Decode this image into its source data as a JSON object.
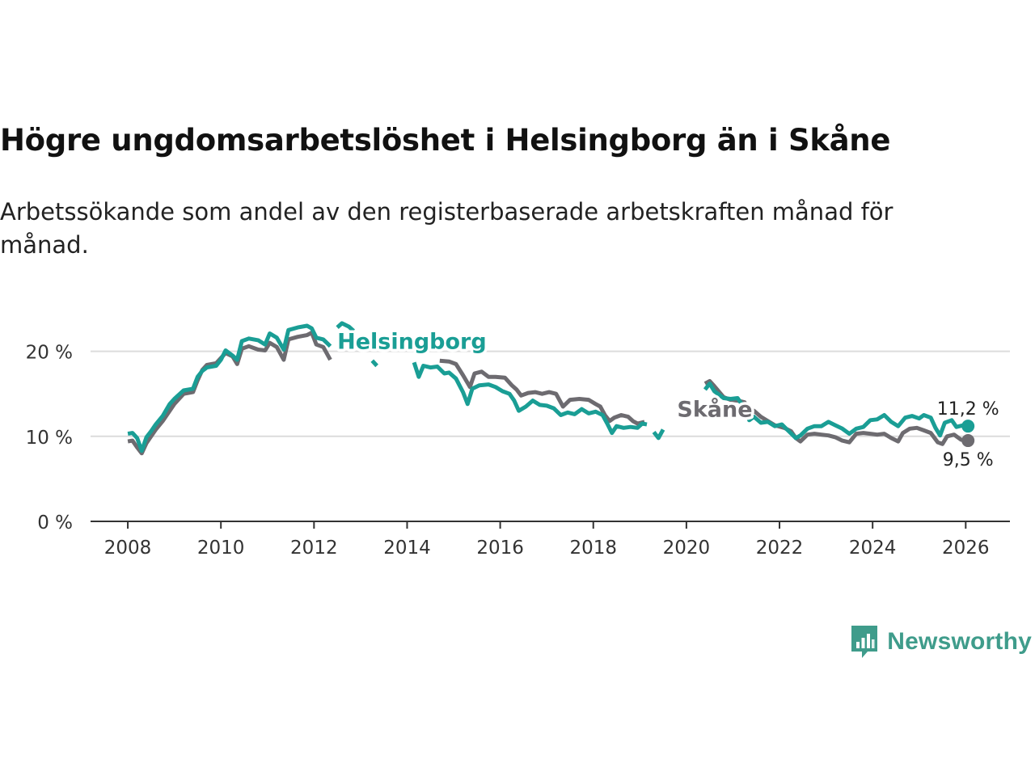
{
  "title": "Högre ungdomsarbetslöshet i Helsingborg än i Skåne",
  "subtitle": "Arbetssökande som andel av den registerbaserade arbetskraften månad för månad.",
  "brand": {
    "name": "Newsworthy",
    "icon": "newsworthy-logo-icon",
    "color": "#3f9c8b"
  },
  "chart_data": {
    "type": "line",
    "title": "Högre ungdomsarbetslöshet i Helsingborg än i Skåne",
    "xlabel": "",
    "ylabel": "",
    "xlim": [
      2007.2,
      2026.95
    ],
    "ylim": [
      0,
      25
    ],
    "x_ticks": [
      2008,
      2010,
      2012,
      2014,
      2016,
      2018,
      2020,
      2022,
      2024,
      2026
    ],
    "x_tick_labels": [
      "2008",
      "2010",
      "2012",
      "2014",
      "2016",
      "2018",
      "2020",
      "2022",
      "2024",
      "2026"
    ],
    "y_ticks": [
      0,
      10,
      20
    ],
    "y_tick_labels": [
      "0 %",
      "10 %",
      "20 %"
    ],
    "grid": true,
    "series": [
      {
        "name": "Skåne",
        "label": "Skåne",
        "color": "#6d6b70",
        "end_label": "9,5 %",
        "label_at": [
          2019.8,
          12.3
        ],
        "points": [
          [
            2008.0,
            9.4
          ],
          [
            2008.1,
            9.5
          ],
          [
            2008.2,
            8.7
          ],
          [
            2008.3,
            8.0
          ],
          [
            2008.4,
            9.2
          ],
          [
            2008.5,
            10.0
          ],
          [
            2008.6,
            10.8
          ],
          [
            2008.75,
            11.8
          ],
          [
            2008.9,
            13.0
          ],
          [
            2009.0,
            13.8
          ],
          [
            2009.2,
            15.0
          ],
          [
            2009.4,
            15.2
          ],
          [
            2009.5,
            16.6
          ],
          [
            2009.6,
            17.8
          ],
          [
            2009.7,
            18.4
          ],
          [
            2009.9,
            18.6
          ],
          [
            2010.0,
            19.2
          ],
          [
            2010.1,
            19.8
          ],
          [
            2010.25,
            19.4
          ],
          [
            2010.35,
            18.5
          ],
          [
            2010.45,
            20.3
          ],
          [
            2010.6,
            20.6
          ],
          [
            2010.8,
            20.2
          ],
          [
            2010.95,
            20.1
          ],
          [
            2011.05,
            21.0
          ],
          [
            2011.2,
            20.5
          ],
          [
            2011.35,
            19.0
          ],
          [
            2011.45,
            21.4
          ],
          [
            2011.65,
            21.7
          ],
          [
            2011.85,
            21.9
          ],
          [
            2011.95,
            22.2
          ],
          [
            2012.05,
            20.8
          ],
          [
            2012.2,
            20.5
          ],
          [
            2012.35,
            19.0
          ],
          null,
          [
            2014.7,
            18.9
          ],
          [
            2014.9,
            18.8
          ],
          [
            2015.05,
            18.5
          ],
          [
            2015.2,
            17.2
          ],
          [
            2015.35,
            15.8
          ],
          [
            2015.45,
            17.4
          ],
          [
            2015.6,
            17.6
          ],
          [
            2015.75,
            17.0
          ],
          [
            2015.9,
            17.0
          ],
          [
            2016.1,
            16.9
          ],
          [
            2016.25,
            16.0
          ],
          [
            2016.35,
            15.5
          ],
          [
            2016.45,
            14.8
          ],
          [
            2016.6,
            15.1
          ],
          [
            2016.75,
            15.2
          ],
          [
            2016.9,
            15.0
          ],
          [
            2017.05,
            15.2
          ],
          [
            2017.2,
            15.0
          ],
          [
            2017.35,
            13.5
          ],
          [
            2017.5,
            14.3
          ],
          [
            2017.7,
            14.4
          ],
          [
            2017.9,
            14.3
          ],
          [
            2018.05,
            13.8
          ],
          [
            2018.15,
            13.5
          ],
          [
            2018.25,
            12.5
          ],
          [
            2018.35,
            11.8
          ],
          [
            2018.45,
            12.2
          ],
          [
            2018.6,
            12.5
          ],
          [
            2018.75,
            12.3
          ],
          [
            2018.85,
            11.8
          ],
          [
            2018.95,
            11.5
          ],
          [
            2019.1,
            11.7
          ],
          null,
          [
            2020.4,
            16.2
          ],
          [
            2020.5,
            16.5
          ],
          [
            2020.6,
            15.9
          ],
          [
            2020.8,
            14.6
          ],
          [
            2020.95,
            14.3
          ],
          [
            2021.1,
            14.2
          ],
          [
            2021.25,
            14.0
          ],
          [
            2021.35,
            12.6
          ],
          [
            2021.45,
            13.0
          ],
          [
            2021.6,
            12.3
          ],
          [
            2021.75,
            11.8
          ],
          [
            2021.9,
            11.3
          ],
          [
            2022.1,
            11.0
          ],
          [
            2022.25,
            10.6
          ],
          [
            2022.35,
            9.8
          ],
          [
            2022.45,
            9.4
          ],
          [
            2022.6,
            10.2
          ],
          [
            2022.75,
            10.3
          ],
          [
            2022.9,
            10.2
          ],
          [
            2023.05,
            10.1
          ],
          [
            2023.2,
            9.9
          ],
          [
            2023.35,
            9.5
          ],
          [
            2023.5,
            9.3
          ],
          [
            2023.65,
            10.3
          ],
          [
            2023.8,
            10.4
          ],
          [
            2023.95,
            10.3
          ],
          [
            2024.1,
            10.2
          ],
          [
            2024.25,
            10.3
          ],
          [
            2024.4,
            9.8
          ],
          [
            2024.55,
            9.4
          ],
          [
            2024.65,
            10.4
          ],
          [
            2024.8,
            10.9
          ],
          [
            2024.95,
            11.0
          ],
          [
            2025.1,
            10.7
          ],
          [
            2025.25,
            10.4
          ],
          [
            2025.4,
            9.3
          ],
          [
            2025.5,
            9.1
          ],
          [
            2025.6,
            10.0
          ],
          [
            2025.75,
            10.2
          ],
          [
            2025.9,
            9.6
          ],
          [
            2026.05,
            9.5
          ]
        ]
      },
      {
        "name": "Helsingborg",
        "label": "Helsingborg",
        "color": "#1a9e95",
        "end_label": "11,2 %",
        "label_at": [
          2012.5,
          20.3
        ],
        "points": [
          [
            2008.0,
            10.3
          ],
          [
            2008.1,
            10.4
          ],
          [
            2008.2,
            9.8
          ],
          [
            2008.3,
            8.3
          ],
          [
            2008.4,
            9.9
          ],
          [
            2008.5,
            10.6
          ],
          [
            2008.6,
            11.4
          ],
          [
            2008.75,
            12.4
          ],
          [
            2008.9,
            13.8
          ],
          [
            2009.0,
            14.4
          ],
          [
            2009.2,
            15.4
          ],
          [
            2009.4,
            15.6
          ],
          [
            2009.5,
            17.0
          ],
          [
            2009.6,
            17.7
          ],
          [
            2009.7,
            18.1
          ],
          [
            2009.9,
            18.3
          ],
          [
            2010.0,
            19.0
          ],
          [
            2010.1,
            20.1
          ],
          [
            2010.25,
            19.5
          ],
          [
            2010.35,
            19.0
          ],
          [
            2010.45,
            21.2
          ],
          [
            2010.6,
            21.5
          ],
          [
            2010.8,
            21.3
          ],
          [
            2010.95,
            20.8
          ],
          [
            2011.05,
            22.1
          ],
          [
            2011.2,
            21.6
          ],
          [
            2011.35,
            20.2
          ],
          [
            2011.45,
            22.5
          ],
          [
            2011.65,
            22.8
          ],
          [
            2011.85,
            23.0
          ],
          [
            2011.95,
            22.7
          ],
          [
            2012.05,
            21.6
          ],
          [
            2012.2,
            21.4
          ],
          [
            2012.35,
            20.6
          ],
          null,
          [
            2012.5,
            22.8
          ],
          [
            2012.6,
            23.3
          ],
          [
            2012.75,
            22.9
          ],
          [
            2012.85,
            22.4
          ],
          null,
          [
            2013.25,
            18.9
          ],
          [
            2013.35,
            18.3
          ],
          null,
          [
            2014.15,
            18.7
          ],
          [
            2014.25,
            17.0
          ],
          [
            2014.35,
            18.3
          ],
          [
            2014.5,
            18.1
          ],
          [
            2014.65,
            18.2
          ],
          [
            2014.8,
            17.4
          ],
          [
            2014.9,
            17.5
          ],
          [
            2015.05,
            16.8
          ],
          [
            2015.2,
            15.2
          ],
          [
            2015.3,
            13.8
          ],
          [
            2015.4,
            15.6
          ],
          [
            2015.55,
            16.0
          ],
          [
            2015.75,
            16.1
          ],
          [
            2015.9,
            15.8
          ],
          [
            2016.05,
            15.3
          ],
          [
            2016.2,
            15.0
          ],
          [
            2016.3,
            14.2
          ],
          [
            2016.4,
            13.0
          ],
          [
            2016.55,
            13.5
          ],
          [
            2016.7,
            14.2
          ],
          [
            2016.85,
            13.7
          ],
          [
            2017.0,
            13.6
          ],
          [
            2017.15,
            13.3
          ],
          [
            2017.3,
            12.5
          ],
          [
            2017.45,
            12.8
          ],
          [
            2017.6,
            12.6
          ],
          [
            2017.75,
            13.2
          ],
          [
            2017.9,
            12.7
          ],
          [
            2018.05,
            12.9
          ],
          [
            2018.2,
            12.5
          ],
          [
            2018.3,
            11.5
          ],
          [
            2018.4,
            10.4
          ],
          [
            2018.5,
            11.2
          ],
          [
            2018.65,
            11.0
          ],
          [
            2018.8,
            11.1
          ],
          [
            2018.95,
            11.0
          ],
          [
            2019.05,
            11.5
          ],
          [
            2019.15,
            11.4
          ],
          null,
          [
            2019.3,
            10.5
          ],
          [
            2019.4,
            9.8
          ],
          [
            2019.5,
            10.8
          ],
          null,
          [
            2020.4,
            15.5
          ],
          [
            2020.5,
            16.2
          ],
          [
            2020.6,
            15.3
          ],
          [
            2020.8,
            14.5
          ],
          [
            2020.95,
            14.4
          ],
          [
            2021.1,
            14.5
          ],
          [
            2021.25,
            13.3
          ],
          [
            2021.35,
            11.9
          ],
          [
            2021.45,
            12.3
          ],
          [
            2021.6,
            11.6
          ],
          [
            2021.75,
            11.7
          ],
          [
            2021.9,
            11.2
          ],
          [
            2022.05,
            11.4
          ],
          [
            2022.2,
            10.6
          ],
          [
            2022.35,
            9.8
          ],
          [
            2022.45,
            10.1
          ],
          [
            2022.6,
            10.9
          ],
          [
            2022.75,
            11.2
          ],
          [
            2022.9,
            11.2
          ],
          [
            2023.05,
            11.7
          ],
          [
            2023.2,
            11.3
          ],
          [
            2023.35,
            10.9
          ],
          [
            2023.5,
            10.3
          ],
          [
            2023.65,
            10.9
          ],
          [
            2023.8,
            11.1
          ],
          [
            2023.95,
            11.9
          ],
          [
            2024.1,
            12.0
          ],
          [
            2024.25,
            12.5
          ],
          [
            2024.4,
            11.7
          ],
          [
            2024.55,
            11.2
          ],
          [
            2024.7,
            12.2
          ],
          [
            2024.85,
            12.4
          ],
          [
            2025.0,
            12.1
          ],
          [
            2025.1,
            12.5
          ],
          [
            2025.25,
            12.2
          ],
          [
            2025.35,
            11.0
          ],
          [
            2025.45,
            10.1
          ],
          [
            2025.55,
            11.6
          ],
          [
            2025.7,
            11.9
          ],
          [
            2025.8,
            11.1
          ],
          [
            2025.95,
            11.3
          ],
          [
            2026.05,
            11.2
          ]
        ]
      }
    ]
  }
}
